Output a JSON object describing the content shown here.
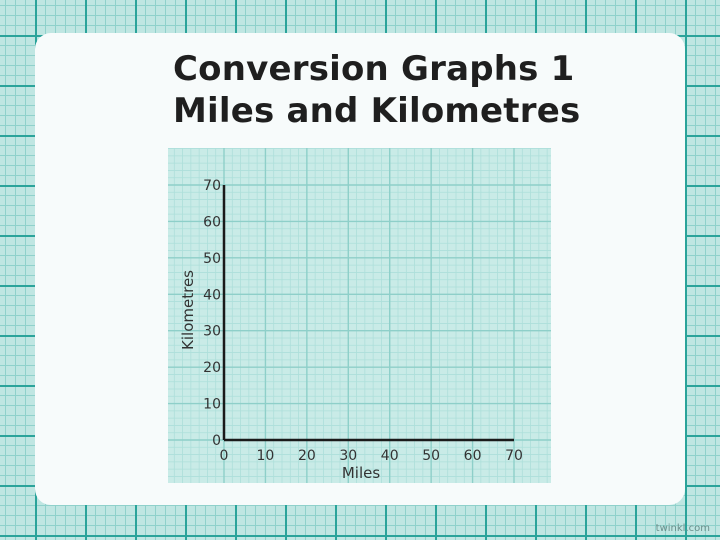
{
  "slide": {
    "title_line1": "Conversion Graphs 1",
    "title_line2": "Miles and Kilometres",
    "credit": "twinkl.com"
  },
  "chart_data": {
    "type": "line",
    "title": "",
    "xlabel": "Miles",
    "ylabel": "Kilometres",
    "xlim": [
      0,
      70
    ],
    "ylim": [
      0,
      70
    ],
    "x_ticks": [
      0,
      10,
      20,
      30,
      40,
      50,
      60,
      70
    ],
    "y_ticks": [
      0,
      10,
      20,
      30,
      40,
      50,
      60,
      70
    ],
    "series": [],
    "grid": true,
    "colors": {
      "paper": "#c9ebe7",
      "grid_major": "#8ecfc9",
      "grid_minor": "#addfda",
      "axis": "#1a1a1a",
      "text": "#333333"
    }
  }
}
